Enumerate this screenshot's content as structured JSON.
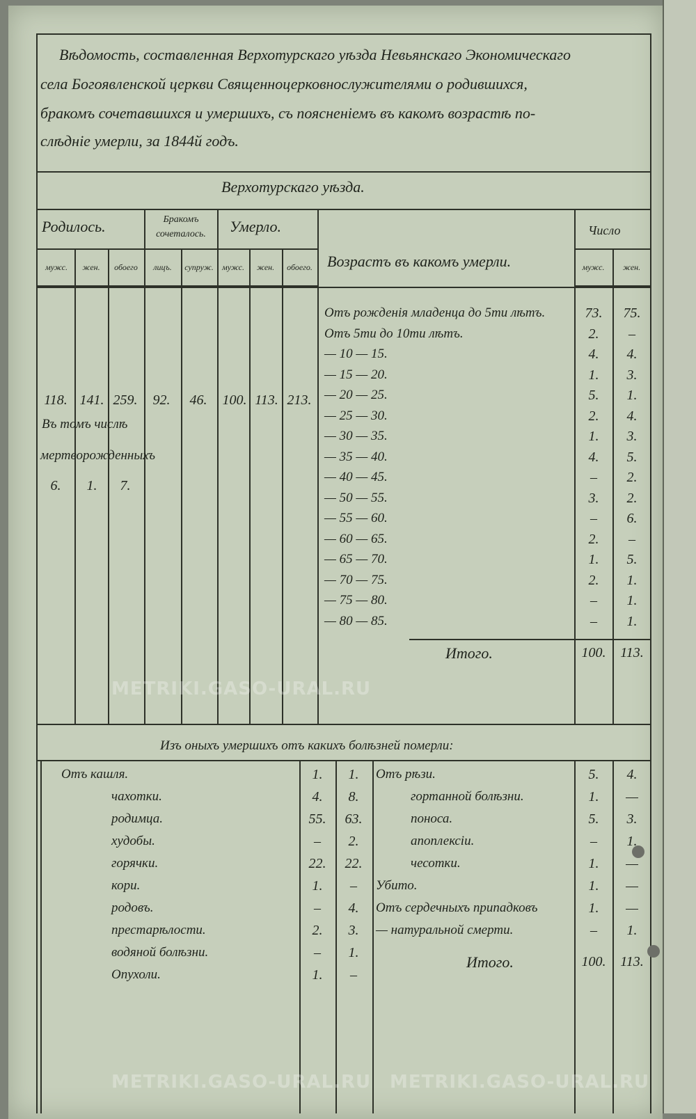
{
  "document": {
    "title_lines": [
      "Вѣдомость, составленная Верхотурскаго уѣзда Невьянскаго Экономическаго",
      "села Богоявленской церкви Священноцерковнослужителями о родившихся,",
      "бракомъ сочетавшихся и умершихъ, съ поясненіемъ въ какомъ возрастѣ по-",
      "слѣдніе умерли, за 1844й годъ."
    ],
    "district_heading": "Верхотурскаго уѣзда.",
    "headers": {
      "born": "Родилось.",
      "married": "Бракомъ сочеталось.",
      "died": "Умерло.",
      "age": "Возрастъ въ какомъ умерли.",
      "count": "Число",
      "sub": [
        "мужс.",
        "жен.",
        "обоего",
        "лицъ.",
        "супруж.",
        "мужс.",
        "жен.",
        "обоего.",
        "мужс.",
        "жен."
      ]
    },
    "totals": [
      "118.",
      "141.",
      "259.",
      "92.",
      "46.",
      "100.",
      "113.",
      "213."
    ],
    "stillborn_label_1": "Въ томъ числѣ",
    "stillborn_label_2": "мертворожденныхъ",
    "stillborn": [
      "6.",
      "1.",
      "7."
    ],
    "age_rows": [
      {
        "label": "Отъ рожденія младенца до 5ти лѣтъ.",
        "m": "73.",
        "f": "75."
      },
      {
        "label": "Отъ 5ти до 10ти лѣтъ.",
        "m": "2.",
        "f": "–"
      },
      {
        "label": "— 10 — 15.",
        "m": "4.",
        "f": "4."
      },
      {
        "label": "— 15 — 20.",
        "m": "1.",
        "f": "3."
      },
      {
        "label": "— 20 — 25.",
        "m": "5.",
        "f": "1."
      },
      {
        "label": "— 25 — 30.",
        "m": "2.",
        "f": "4."
      },
      {
        "label": "— 30 — 35.",
        "m": "1.",
        "f": "3."
      },
      {
        "label": "— 35 — 40.",
        "m": "4.",
        "f": "5."
      },
      {
        "label": "— 40 — 45.",
        "m": "–",
        "f": "2."
      },
      {
        "label": "— 50 — 55.",
        "m": "3.",
        "f": "2."
      },
      {
        "label": "— 55 — 60.",
        "m": "–",
        "f": "6."
      },
      {
        "label": "— 60 — 65.",
        "m": "2.",
        "f": "–"
      },
      {
        "label": "— 65 — 70.",
        "m": "1.",
        "f": "5."
      },
      {
        "label": "— 70 — 75.",
        "m": "2.",
        "f": "1."
      },
      {
        "label": "— 75 — 80.",
        "m": "–",
        "f": "1."
      },
      {
        "label": "— 80 — 85.",
        "m": "–",
        "f": "1."
      }
    ],
    "age_total": {
      "label": "Итого.",
      "m": "100.",
      "f": "113."
    },
    "diseases_heading": "Изъ оныхъ умершихъ отъ какихъ болѣзней померли:",
    "diseases_left": [
      {
        "label": "Отъ кашля.",
        "m": "1.",
        "f": "1."
      },
      {
        "label": "чахотки.",
        "m": "4.",
        "f": "8."
      },
      {
        "label": "родимца.",
        "m": "55.",
        "f": "63."
      },
      {
        "label": "худобы.",
        "m": "–",
        "f": "2."
      },
      {
        "label": "горячки.",
        "m": "22.",
        "f": "22."
      },
      {
        "label": "кори.",
        "m": "1.",
        "f": "–"
      },
      {
        "label": "родовъ.",
        "m": "–",
        "f": "4."
      },
      {
        "label": "престарѣлости.",
        "m": "2.",
        "f": "3."
      },
      {
        "label": "водяной болѣзни.",
        "m": "–",
        "f": "1."
      },
      {
        "label": "Опухоли.",
        "m": "1.",
        "f": "–"
      }
    ],
    "diseases_right": [
      {
        "label": "Отъ рѣзи.",
        "m": "5.",
        "f": "4."
      },
      {
        "label": "гортанной болѣзни.",
        "m": "1.",
        "f": "—"
      },
      {
        "label": "поноса.",
        "m": "5.",
        "f": "3."
      },
      {
        "label": "апоплексіи.",
        "m": "–",
        "f": "1."
      },
      {
        "label": "чесотки.",
        "m": "1.",
        "f": "—"
      },
      {
        "label": "Убито.",
        "m": "1.",
        "f": "—"
      },
      {
        "label": "Отъ сердечныхъ припадковъ",
        "m": "1.",
        "f": "—"
      },
      {
        "label": "— натуральной смерти.",
        "m": "–",
        "f": "1."
      }
    ],
    "diseases_total": {
      "label": "Итого.",
      "m": "100.",
      "f": "113."
    }
  },
  "watermark": "METRIKI.GASO-URAL.RU",
  "colors": {
    "paper": "#c6cfbb",
    "ink": "#1f231c"
  }
}
